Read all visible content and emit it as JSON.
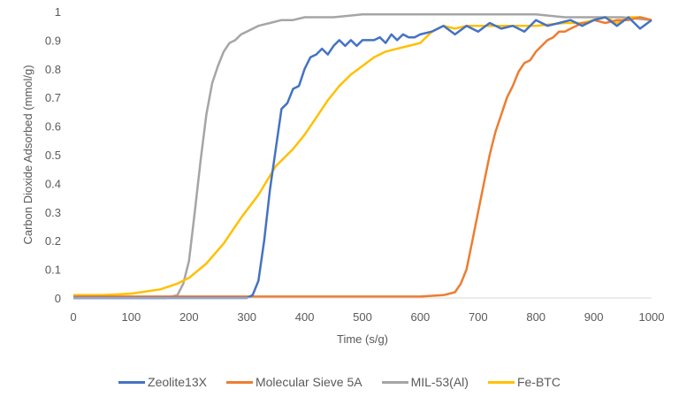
{
  "chart_data": {
    "type": "line",
    "title": "",
    "xlabel": "Time (s/g)",
    "ylabel": "Carbon Dioxide Adsorbed (mmol/g)",
    "xlim": [
      0,
      1000
    ],
    "ylim": [
      0,
      1
    ],
    "xticks": [
      "0",
      "100",
      "200",
      "300",
      "400",
      "500",
      "600",
      "700",
      "800",
      "900",
      "1000"
    ],
    "yticks": [
      "0",
      "0.1",
      "0.2",
      "0.3",
      "0.4",
      "0.5",
      "0.6",
      "0.7",
      "0.8",
      "0.9",
      "1"
    ],
    "grid": false,
    "legend_position": "bottom",
    "series": [
      {
        "name": "Zeolite13X",
        "color": "#4472c4",
        "x": [
          0,
          150,
          200,
          250,
          300,
          310,
          320,
          330,
          340,
          350,
          360,
          370,
          380,
          390,
          400,
          410,
          420,
          430,
          440,
          450,
          460,
          470,
          480,
          490,
          500,
          510,
          520,
          530,
          540,
          550,
          560,
          570,
          580,
          590,
          600,
          620,
          640,
          660,
          680,
          700,
          720,
          740,
          760,
          780,
          800,
          820,
          840,
          860,
          880,
          900,
          920,
          940,
          960,
          980,
          1000
        ],
        "y": [
          0.0,
          0.0,
          0.0,
          0.0,
          0.0,
          0.01,
          0.06,
          0.2,
          0.38,
          0.52,
          0.66,
          0.68,
          0.73,
          0.74,
          0.8,
          0.84,
          0.85,
          0.87,
          0.85,
          0.88,
          0.9,
          0.88,
          0.9,
          0.88,
          0.9,
          0.9,
          0.9,
          0.91,
          0.89,
          0.92,
          0.9,
          0.92,
          0.91,
          0.91,
          0.92,
          0.93,
          0.95,
          0.92,
          0.95,
          0.93,
          0.96,
          0.94,
          0.95,
          0.93,
          0.97,
          0.95,
          0.96,
          0.97,
          0.95,
          0.97,
          0.98,
          0.95,
          0.98,
          0.94,
          0.97
        ]
      },
      {
        "name": "Molecular Sieve 5A",
        "color": "#ed7d31",
        "x": [
          0,
          100,
          200,
          300,
          400,
          500,
          600,
          640,
          660,
          670,
          680,
          690,
          700,
          710,
          720,
          730,
          740,
          750,
          760,
          770,
          780,
          790,
          800,
          810,
          820,
          830,
          840,
          850,
          860,
          870,
          880,
          890,
          900,
          920,
          940,
          960,
          980,
          1000
        ],
        "y": [
          0.005,
          0.005,
          0.005,
          0.005,
          0.005,
          0.005,
          0.005,
          0.01,
          0.02,
          0.05,
          0.1,
          0.2,
          0.3,
          0.4,
          0.5,
          0.58,
          0.64,
          0.7,
          0.74,
          0.79,
          0.82,
          0.83,
          0.86,
          0.88,
          0.9,
          0.91,
          0.93,
          0.93,
          0.94,
          0.95,
          0.96,
          0.96,
          0.97,
          0.96,
          0.97,
          0.97,
          0.98,
          0.97
        ]
      },
      {
        "name": "MIL-53(Al)",
        "color": "#a5a5a5",
        "x": [
          0,
          100,
          160,
          180,
          190,
          200,
          210,
          220,
          230,
          240,
          250,
          260,
          270,
          280,
          290,
          300,
          320,
          340,
          360,
          380,
          400,
          450,
          500,
          550,
          600,
          650,
          700,
          750,
          800,
          850,
          900,
          950,
          1000
        ],
        "y": [
          0.0,
          0.0,
          0.0,
          0.01,
          0.05,
          0.13,
          0.3,
          0.48,
          0.64,
          0.75,
          0.81,
          0.86,
          0.89,
          0.9,
          0.92,
          0.93,
          0.95,
          0.96,
          0.97,
          0.97,
          0.98,
          0.98,
          0.99,
          0.99,
          0.99,
          0.99,
          0.99,
          0.99,
          0.99,
          0.98,
          0.98,
          0.98,
          0.97
        ]
      },
      {
        "name": "Fe-BTC",
        "color": "#ffc000",
        "x": [
          0,
          50,
          100,
          150,
          180,
          200,
          230,
          260,
          290,
          320,
          350,
          380,
          400,
          420,
          440,
          460,
          480,
          500,
          520,
          540,
          560,
          580,
          600,
          620,
          640,
          660,
          680,
          700,
          750,
          800,
          850,
          880,
          900,
          920,
          940,
          960,
          980,
          1000
        ],
        "y": [
          0.01,
          0.01,
          0.015,
          0.03,
          0.05,
          0.07,
          0.12,
          0.19,
          0.28,
          0.36,
          0.46,
          0.52,
          0.57,
          0.63,
          0.69,
          0.74,
          0.78,
          0.81,
          0.84,
          0.86,
          0.87,
          0.88,
          0.89,
          0.93,
          0.95,
          0.94,
          0.95,
          0.95,
          0.95,
          0.95,
          0.96,
          0.96,
          0.97,
          0.98,
          0.96,
          0.98,
          0.98,
          0.97
        ]
      }
    ]
  }
}
